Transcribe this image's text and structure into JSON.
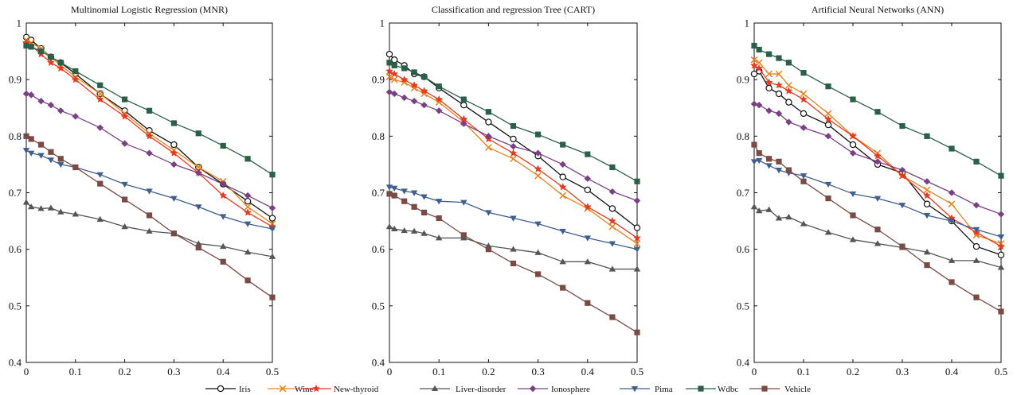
{
  "chart_data": [
    {
      "type": "line",
      "title": "Multinomial Logistic Regression (MNR)",
      "xlim": [
        0,
        0.5
      ],
      "ylim": [
        0.4,
        1
      ],
      "xticks": [
        "0",
        "0.1",
        "0.2",
        "0.3",
        "0.4",
        "0.5"
      ],
      "yticks": [
        "0.4",
        "0.5",
        "0.6",
        "0.7",
        "0.8",
        "0.9",
        "1"
      ],
      "x": [
        0,
        0.01,
        0.03,
        0.05,
        0.07,
        0.1,
        0.15,
        0.2,
        0.25,
        0.3,
        0.35,
        0.4,
        0.45,
        0.5
      ],
      "grid": false,
      "series": [
        {
          "name": "Iris",
          "values": [
            0.975,
            0.97,
            0.955,
            0.94,
            0.93,
            0.91,
            0.875,
            0.845,
            0.81,
            0.785,
            0.745,
            0.715,
            0.685,
            0.655
          ]
        },
        {
          "name": "Wine",
          "values": [
            0.97,
            0.965,
            0.955,
            0.94,
            0.925,
            0.905,
            0.875,
            0.84,
            0.805,
            0.775,
            0.745,
            0.72,
            0.675,
            0.645
          ]
        },
        {
          "name": "New-thyroid",
          "values": [
            0.965,
            0.96,
            0.945,
            0.93,
            0.92,
            0.9,
            0.865,
            0.835,
            0.8,
            0.77,
            0.735,
            0.695,
            0.665,
            0.64
          ]
        },
        {
          "name": "Liver-disorder",
          "values": [
            0.683,
            0.675,
            0.672,
            0.673,
            0.666,
            0.662,
            0.653,
            0.64,
            0.632,
            0.628,
            0.61,
            0.605,
            0.595,
            0.587
          ]
        },
        {
          "name": "Ionosphere",
          "values": [
            0.875,
            0.873,
            0.862,
            0.855,
            0.845,
            0.835,
            0.815,
            0.787,
            0.77,
            0.75,
            0.735,
            0.715,
            0.695,
            0.673
          ]
        },
        {
          "name": "Pima",
          "values": [
            0.775,
            0.77,
            0.766,
            0.758,
            0.75,
            0.745,
            0.732,
            0.715,
            0.703,
            0.69,
            0.675,
            0.658,
            0.645,
            0.636
          ]
        },
        {
          "name": "Wdbc",
          "values": [
            0.96,
            0.958,
            0.95,
            0.94,
            0.93,
            0.915,
            0.89,
            0.865,
            0.845,
            0.823,
            0.805,
            0.783,
            0.76,
            0.732
          ]
        },
        {
          "name": "Vehicle",
          "values": [
            0.8,
            0.795,
            0.785,
            0.772,
            0.76,
            0.745,
            0.716,
            0.688,
            0.66,
            0.628,
            0.603,
            0.578,
            0.545,
            0.515
          ]
        }
      ]
    },
    {
      "type": "line",
      "title": "Classification and regression Tree (CART)",
      "xlim": [
        0,
        0.5
      ],
      "ylim": [
        0.4,
        1
      ],
      "xticks": [
        "0",
        "0.1",
        "0.2",
        "0.3",
        "0.4",
        "0.5"
      ],
      "yticks": [
        "0.4",
        "0.5",
        "0.6",
        "0.7",
        "0.8",
        "0.9",
        "1"
      ],
      "x": [
        0,
        0.01,
        0.03,
        0.05,
        0.07,
        0.1,
        0.15,
        0.2,
        0.25,
        0.3,
        0.35,
        0.4,
        0.45,
        0.5
      ],
      "grid": false,
      "series": [
        {
          "name": "Iris",
          "values": [
            0.945,
            0.935,
            0.925,
            0.91,
            0.905,
            0.885,
            0.855,
            0.825,
            0.795,
            0.765,
            0.728,
            0.705,
            0.672,
            0.638
          ]
        },
        {
          "name": "Wine",
          "values": [
            0.905,
            0.9,
            0.895,
            0.885,
            0.875,
            0.86,
            0.825,
            0.78,
            0.76,
            0.73,
            0.695,
            0.672,
            0.64,
            0.61
          ]
        },
        {
          "name": "New-thyroid",
          "values": [
            0.915,
            0.91,
            0.9,
            0.89,
            0.88,
            0.865,
            0.83,
            0.795,
            0.77,
            0.742,
            0.71,
            0.675,
            0.65,
            0.62
          ]
        },
        {
          "name": "Liver-disorder",
          "values": [
            0.64,
            0.636,
            0.633,
            0.632,
            0.628,
            0.62,
            0.62,
            0.606,
            0.6,
            0.594,
            0.578,
            0.578,
            0.565,
            0.565
          ]
        },
        {
          "name": "Ionosphere",
          "values": [
            0.878,
            0.875,
            0.868,
            0.862,
            0.855,
            0.845,
            0.822,
            0.8,
            0.782,
            0.77,
            0.75,
            0.725,
            0.702,
            0.686
          ]
        },
        {
          "name": "Pima",
          "values": [
            0.71,
            0.708,
            0.703,
            0.7,
            0.693,
            0.685,
            0.683,
            0.665,
            0.655,
            0.645,
            0.632,
            0.62,
            0.61,
            0.6
          ]
        },
        {
          "name": "Wdbc",
          "values": [
            0.93,
            0.925,
            0.92,
            0.913,
            0.905,
            0.888,
            0.865,
            0.843,
            0.818,
            0.803,
            0.785,
            0.768,
            0.745,
            0.72
          ]
        },
        {
          "name": "Vehicle",
          "values": [
            0.698,
            0.695,
            0.685,
            0.675,
            0.665,
            0.655,
            0.625,
            0.6,
            0.575,
            0.556,
            0.532,
            0.505,
            0.48,
            0.453
          ]
        }
      ]
    },
    {
      "type": "line",
      "title": "Artificial Neural Networks (ANN)",
      "xlim": [
        0,
        0.5
      ],
      "ylim": [
        0.4,
        1
      ],
      "xticks": [
        "0",
        "0.1",
        "0.2",
        "0.3",
        "0.4",
        "0.5"
      ],
      "yticks": [
        "0.4",
        "0.5",
        "0.6",
        "0.7",
        "0.8",
        "0.9",
        "1"
      ],
      "x": [
        0,
        0.01,
        0.03,
        0.05,
        0.07,
        0.1,
        0.15,
        0.2,
        0.25,
        0.3,
        0.35,
        0.4,
        0.45,
        0.5
      ],
      "grid": false,
      "series": [
        {
          "name": "Iris",
          "values": [
            0.91,
            0.915,
            0.885,
            0.875,
            0.86,
            0.84,
            0.82,
            0.785,
            0.75,
            0.735,
            0.68,
            0.65,
            0.605,
            0.59
          ]
        },
        {
          "name": "Wine",
          "values": [
            0.935,
            0.93,
            0.91,
            0.91,
            0.89,
            0.875,
            0.84,
            0.8,
            0.77,
            0.73,
            0.705,
            0.68,
            0.625,
            0.61
          ]
        },
        {
          "name": "New-thyroid",
          "values": [
            0.925,
            0.92,
            0.895,
            0.89,
            0.88,
            0.865,
            0.83,
            0.8,
            0.765,
            0.73,
            0.695,
            0.655,
            0.63,
            0.605
          ]
        },
        {
          "name": "Liver-disorder",
          "values": [
            0.675,
            0.668,
            0.67,
            0.655,
            0.657,
            0.645,
            0.63,
            0.617,
            0.61,
            0.603,
            0.595,
            0.58,
            0.58,
            0.568
          ]
        },
        {
          "name": "Ionosphere",
          "values": [
            0.857,
            0.855,
            0.845,
            0.84,
            0.825,
            0.815,
            0.8,
            0.77,
            0.755,
            0.74,
            0.72,
            0.7,
            0.678,
            0.662
          ]
        },
        {
          "name": "Pima",
          "values": [
            0.755,
            0.757,
            0.748,
            0.74,
            0.735,
            0.73,
            0.715,
            0.698,
            0.69,
            0.678,
            0.66,
            0.65,
            0.635,
            0.622
          ]
        },
        {
          "name": "Wdbc",
          "values": [
            0.96,
            0.953,
            0.945,
            0.938,
            0.93,
            0.912,
            0.888,
            0.865,
            0.843,
            0.818,
            0.8,
            0.778,
            0.755,
            0.73
          ]
        },
        {
          "name": "Vehicle",
          "values": [
            0.785,
            0.77,
            0.76,
            0.755,
            0.74,
            0.72,
            0.69,
            0.66,
            0.635,
            0.605,
            0.572,
            0.542,
            0.515,
            0.49
          ]
        }
      ]
    }
  ],
  "legend": {
    "placement": "bottom",
    "items": [
      {
        "name": "Iris",
        "color": "#111111",
        "marker": "circle-open"
      },
      {
        "name": "Wine",
        "color": "#e8821e",
        "marker": "x"
      },
      {
        "name": "New-thyroid",
        "color": "#e83a1e",
        "marker": "star"
      },
      {
        "name": "Liver-disorder",
        "color": "#555555",
        "marker": "triangle-up"
      },
      {
        "name": "Ionosphere",
        "color": "#7b3f86",
        "marker": "diamond"
      },
      {
        "name": "Pima",
        "color": "#3f5f8f",
        "marker": "triangle-down"
      },
      {
        "name": "Wdbc",
        "color": "#2a6048",
        "marker": "square"
      },
      {
        "name": "Vehicle",
        "color": "#7a4a45",
        "marker": "square"
      }
    ]
  }
}
